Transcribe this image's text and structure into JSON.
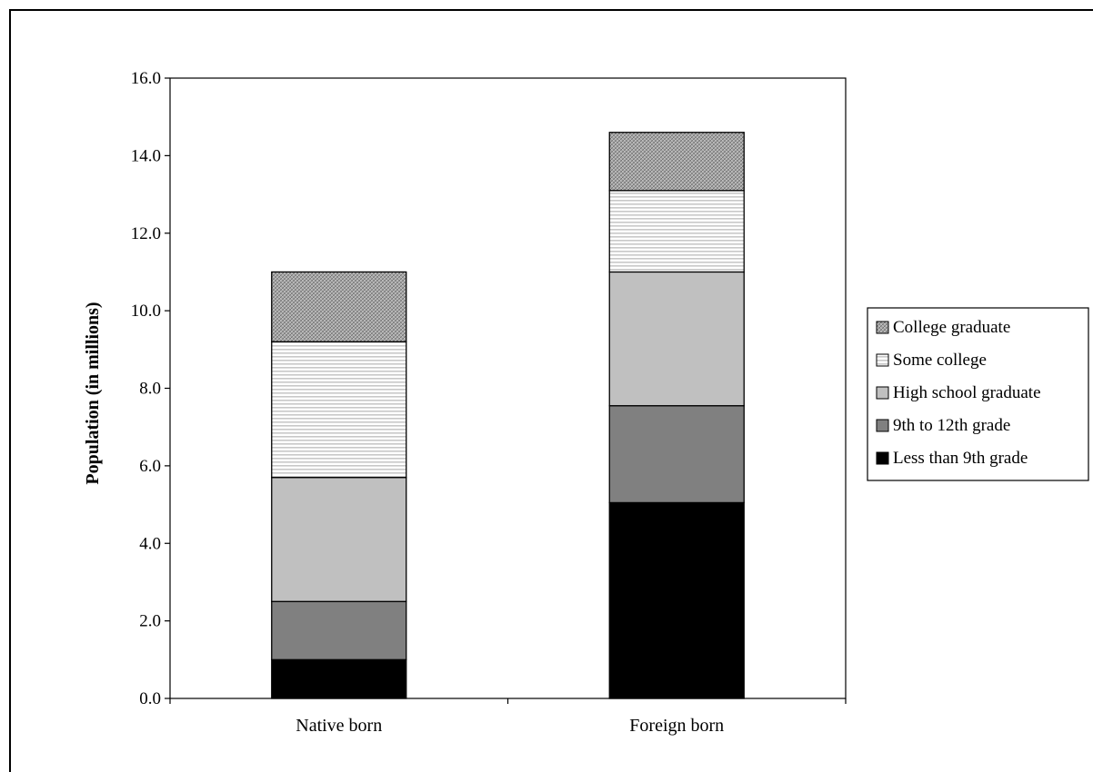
{
  "chart_data": {
    "type": "bar",
    "stacked": true,
    "categories": [
      "Native born",
      "Foreign born"
    ],
    "series": [
      {
        "name": "Less than 9th grade",
        "values": [
          1.0,
          5.05
        ],
        "pattern": "solid-black"
      },
      {
        "name": "9th to 12th grade",
        "values": [
          1.5,
          2.5
        ],
        "pattern": "dark-gray"
      },
      {
        "name": "High school graduate",
        "values": [
          3.2,
          3.45
        ],
        "pattern": "light-gray"
      },
      {
        "name": "Some college",
        "values": [
          3.5,
          2.1
        ],
        "pattern": "horizontal-lines"
      },
      {
        "name": "College graduate",
        "values": [
          1.8,
          1.5
        ],
        "pattern": "crosshatch"
      }
    ],
    "ylabel": "Population (in millions)",
    "ylim": [
      0,
      16
    ],
    "yticks": [
      "0.0",
      "2.0",
      "4.0",
      "6.0",
      "8.0",
      "10.0",
      "12.0",
      "14.0",
      "16.0"
    ],
    "grid": false,
    "legend_position": "right",
    "legend_order": [
      "College graduate",
      "Some college",
      "High school graduate",
      "9th to 12th grade",
      "Less than 9th grade"
    ],
    "colors": {
      "solid-black": "#000000",
      "dark-gray": "#808080",
      "light-gray": "#c0c0c0",
      "lines": "#c8c8c8",
      "crosshatch": "#7a7a7a"
    }
  }
}
